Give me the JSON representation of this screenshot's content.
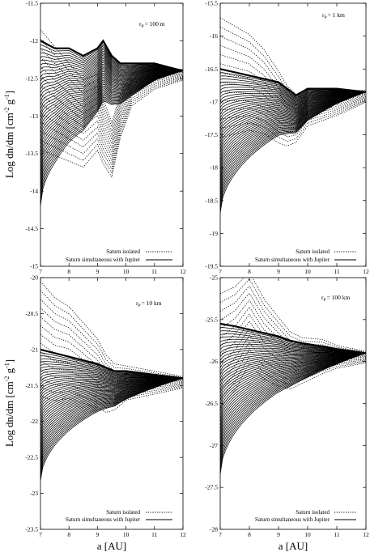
{
  "figure": {
    "xlabel": "a [AU]",
    "ylabel": "Log dn/dm [cm ^-2 g ^-1]",
    "ylabel_parts": {
      "main": "Log dn/dm [cm",
      "exp1": "-2",
      "mid": " g",
      "exp2": "-1",
      "end": "]"
    },
    "legend_labels": [
      "Saturn isolated",
      "Saturn simultaneous with Jupiter"
    ]
  },
  "chart_data": [
    {
      "type": "line",
      "title": "r_P = 100 m",
      "title_parts": {
        "r": "r",
        "sub": "P",
        "value": "= 100 m"
      },
      "xlim": [
        7,
        12
      ],
      "ylim": [
        -15,
        -11.5
      ],
      "xticks": [
        "7",
        "8",
        "9",
        "10",
        "11",
        "12"
      ],
      "yticks": [
        "-11.5",
        "-12",
        "-12.5",
        "-13",
        "-13.5",
        "-14",
        "-14.5",
        "-15"
      ],
      "legend": "bottom-right",
      "series": [
        {
          "name": "Saturn isolated",
          "style": "dotted",
          "x": [
            7,
            7.5,
            8,
            8.5,
            9,
            9.2,
            9.5,
            9.8,
            10.2,
            11,
            12
          ],
          "y": [
            -12.1,
            -12.3,
            -12.5,
            -12.7,
            -12.6,
            -12.9,
            -13.2,
            -12.8,
            -12.5,
            -12.4,
            -12.4
          ]
        },
        {
          "name": "Saturn simultaneous with Jupiter",
          "style": "solid",
          "x": [
            7,
            7.5,
            8,
            8.5,
            9,
            9.2,
            9.5,
            9.8,
            10.2,
            11,
            12
          ],
          "y": [
            -12.0,
            -12.1,
            -12.1,
            -12.2,
            -12.1,
            -12.0,
            -12.2,
            -12.3,
            -12.3,
            -12.3,
            -12.4
          ]
        }
      ]
    },
    {
      "type": "line",
      "title": "r_P = 1 km",
      "title_parts": {
        "r": "r",
        "sub": "P",
        "value": "= 1 km"
      },
      "xlim": [
        7,
        12
      ],
      "ylim": [
        -19.5,
        -15.5
      ],
      "xticks": [
        "7",
        "8",
        "9",
        "10",
        "11",
        "12"
      ],
      "yticks": [
        "-15.5",
        "-16",
        "-16.5",
        "-17",
        "-17.5",
        "-18",
        "-18.5",
        "-19",
        "-19.5"
      ],
      "legend": "bottom-right",
      "series": [
        {
          "name": "Saturn isolated",
          "style": "dotted",
          "x": [
            7,
            7.5,
            8,
            8.5,
            9,
            9.3,
            9.6,
            10,
            11,
            12
          ],
          "y": [
            -16.0,
            -16.1,
            -16.2,
            -16.4,
            -16.7,
            -16.9,
            -17.0,
            -16.9,
            -16.9,
            -16.85
          ]
        },
        {
          "name": "Saturn simultaneous with Jupiter",
          "style": "solid",
          "x": [
            7,
            7.5,
            8,
            8.5,
            9,
            9.3,
            9.6,
            10,
            11,
            12
          ],
          "y": [
            -16.5,
            -16.55,
            -16.6,
            -16.65,
            -16.7,
            -16.8,
            -16.9,
            -16.8,
            -16.8,
            -16.85
          ]
        }
      ]
    },
    {
      "type": "line",
      "title": "r_P = 10 km",
      "title_parts": {
        "r": "r",
        "sub": "P",
        "value": "= 10 km"
      },
      "xlim": [
        7,
        12
      ],
      "ylim": [
        -23.5,
        -20
      ],
      "xticks": [
        "7",
        "8",
        "9",
        "10",
        "11",
        "12"
      ],
      "yticks": [
        "-20",
        "-20.5",
        "-21",
        "-21.5",
        "-22",
        "-22.5",
        "-23",
        "-23.5"
      ],
      "legend": "bottom-right",
      "series": [
        {
          "name": "Saturn isolated",
          "style": "dotted",
          "x": [
            7,
            7.5,
            8,
            8.5,
            9,
            9.3,
            9.6,
            10,
            11,
            12
          ],
          "y": [
            -20.3,
            -20.5,
            -20.6,
            -20.8,
            -21.0,
            -21.2,
            -21.3,
            -21.3,
            -21.35,
            -21.4
          ]
        },
        {
          "name": "Saturn simultaneous with Jupiter",
          "style": "solid",
          "x": [
            7,
            7.5,
            8,
            8.5,
            9,
            9.3,
            9.6,
            10,
            11,
            12
          ],
          "y": [
            -21.0,
            -21.05,
            -21.1,
            -21.15,
            -21.2,
            -21.25,
            -21.3,
            -21.3,
            -21.35,
            -21.4
          ]
        }
      ]
    },
    {
      "type": "line",
      "title": "r_P = 100 km",
      "title_parts": {
        "r": "r",
        "sub": "P",
        "value": "= 100 km"
      },
      "xlim": [
        7,
        12
      ],
      "ylim": [
        -28,
        -25
      ],
      "xticks": [
        "7",
        "8",
        "9",
        "10",
        "11",
        "12"
      ],
      "yticks": [
        "-25",
        "-25.5",
        "-26",
        "-26.5",
        "-27",
        "-27.5",
        "-28"
      ],
      "legend": "bottom-right",
      "series": [
        {
          "name": "Saturn isolated",
          "style": "dotted",
          "x": [
            7,
            7.5,
            8,
            8.5,
            9,
            9.4,
            9.8,
            10.5,
            11,
            12
          ],
          "y": [
            -25.4,
            -25.3,
            -25.1,
            -25.4,
            -25.6,
            -25.75,
            -25.8,
            -25.8,
            -25.85,
            -25.9
          ]
        },
        {
          "name": "Saturn simultaneous with Jupiter",
          "style": "solid",
          "x": [
            7,
            7.5,
            8,
            8.5,
            9,
            9.4,
            9.8,
            10.5,
            11,
            12
          ],
          "y": [
            -25.55,
            -25.58,
            -25.62,
            -25.66,
            -25.7,
            -25.75,
            -25.78,
            -25.82,
            -25.85,
            -25.9
          ]
        }
      ]
    }
  ]
}
